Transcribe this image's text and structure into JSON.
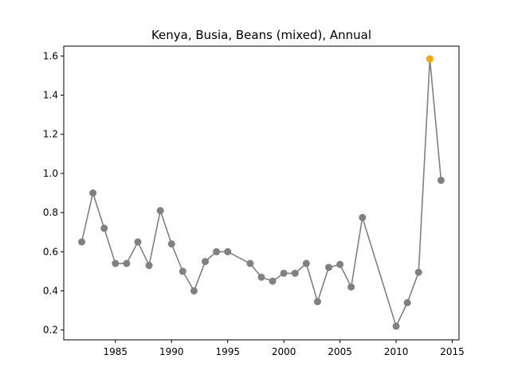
{
  "chart_data": {
    "type": "line",
    "title": "Kenya, Busia, Beans (mixed), Annual",
    "xlabel": "",
    "ylabel": "",
    "xlim": [
      1980.4,
      2015.6
    ],
    "ylim": [
      0.15,
      1.65
    ],
    "xticks": [
      1985,
      1990,
      1995,
      2000,
      2005,
      2010,
      2015
    ],
    "yticks": [
      0.2,
      0.4,
      0.6,
      0.8,
      1.0,
      1.2,
      1.4,
      1.6
    ],
    "grid": false,
    "legend": "none",
    "line_color": "#808080",
    "marker_color": "#808080",
    "highlight_color": "#ffa500",
    "highlight_year": 2013,
    "series": [
      {
        "x": [
          1982,
          1983,
          1984,
          1985,
          1986,
          1987,
          1988,
          1989,
          1990,
          1991,
          1992,
          1993,
          1994,
          1995,
          1997,
          1998,
          1999,
          2000,
          2001,
          2002,
          2003,
          2004,
          2005,
          2006,
          2007,
          2010,
          2011,
          2012,
          2013,
          2014
        ],
        "y": [
          0.65,
          0.9,
          0.72,
          0.54,
          0.54,
          0.65,
          0.53,
          0.81,
          0.64,
          0.5,
          0.4,
          0.55,
          0.6,
          0.6,
          0.54,
          0.47,
          0.45,
          0.49,
          0.49,
          0.54,
          0.345,
          0.52,
          0.535,
          0.42,
          0.775,
          0.22,
          0.34,
          0.495,
          1.585,
          0.965
        ]
      }
    ]
  }
}
